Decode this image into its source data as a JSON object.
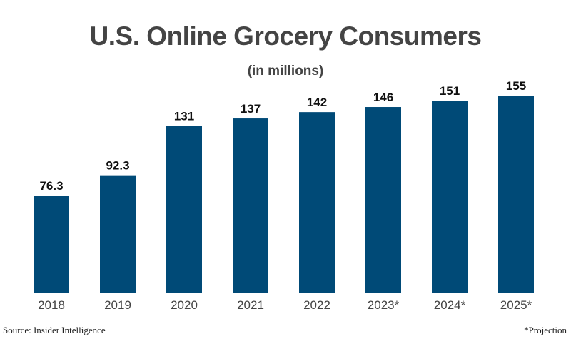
{
  "chart_data": {
    "type": "bar",
    "title": "U.S. Online Grocery Consumers",
    "subtitle": "(in millions)",
    "categories": [
      "2018",
      "2019",
      "2020",
      "2021",
      "2022",
      "2023*",
      "2024*",
      "2025*"
    ],
    "values": [
      76.3,
      92.3,
      131,
      137,
      142,
      146,
      151,
      155
    ],
    "data_labels": [
      "76.3",
      "92.3",
      "131",
      "137",
      "142",
      "146",
      "151",
      "155"
    ],
    "xlabel": "",
    "ylabel": "",
    "ylim": [
      0,
      155
    ],
    "grid": false,
    "bar_color": "#004a77"
  },
  "footer": {
    "source": "Source: Insider Intelligence",
    "note": "*Projection"
  }
}
